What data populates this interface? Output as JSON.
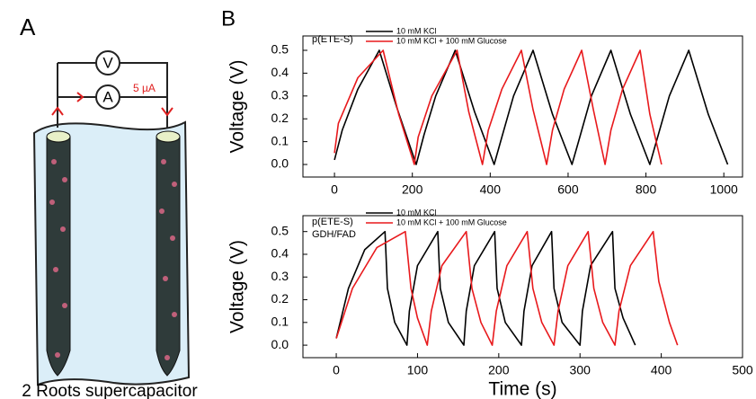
{
  "figure": {
    "panel_labels": [
      "A",
      "B"
    ],
    "caption": "2 Roots supercapacitor",
    "meter_labels": [
      "V",
      "A"
    ],
    "current": "5 µA"
  },
  "chart_data": [
    {
      "type": "line",
      "annotations": [
        "p(ETE-S)"
      ],
      "ylabel": "Voltage (V)",
      "xlim": [
        -81,
        1048
      ],
      "xticks": [
        0,
        200,
        400,
        600,
        800,
        1000
      ],
      "ylim": [
        -0.055,
        0.563
      ],
      "yticks": [
        {
          "value": 0,
          "label": "0.0"
        },
        0.1,
        0.2,
        0.3,
        0.4,
        0.5
      ],
      "series": [
        {
          "name": "10 mM KCl",
          "color": "#000000",
          "x": [
            0,
            20,
            60,
            115,
            160,
            210,
            230,
            260,
            310,
            360,
            410,
            430,
            460,
            510,
            560,
            610,
            630,
            660,
            710,
            760,
            810,
            830,
            860,
            910,
            960,
            1010
          ],
          "values": [
            0.02,
            0.15,
            0.33,
            0.5,
            0.25,
            0.0,
            0.13,
            0.3,
            0.5,
            0.23,
            0.0,
            0.12,
            0.3,
            0.5,
            0.22,
            0.0,
            0.12,
            0.3,
            0.5,
            0.22,
            0.0,
            0.12,
            0.3,
            0.5,
            0.22,
            0.0
          ]
        },
        {
          "name": "10 mM KCl + 100 mM Glucose",
          "color": "#e8191c",
          "x": [
            0,
            10,
            60,
            125,
            165,
            205,
            215,
            250,
            315,
            345,
            380,
            395,
            430,
            480,
            510,
            545,
            560,
            590,
            635,
            665,
            695,
            710,
            740,
            785,
            810,
            840
          ],
          "values": [
            0.05,
            0.18,
            0.38,
            0.5,
            0.22,
            0.0,
            0.12,
            0.3,
            0.5,
            0.23,
            0.0,
            0.15,
            0.33,
            0.5,
            0.24,
            0.0,
            0.15,
            0.33,
            0.5,
            0.24,
            0.0,
            0.15,
            0.33,
            0.5,
            0.22,
            0.0
          ]
        }
      ]
    },
    {
      "type": "line",
      "annotations": [
        "p(ETE-S)",
        "GDH/FAD"
      ],
      "ylabel": "Voltage (V)",
      "xlabel": "Time (s)",
      "xlim": [
        -41,
        500
      ],
      "xticks": [
        0,
        100,
        200,
        300,
        400,
        500
      ],
      "ylim": [
        -0.055,
        0.57
      ],
      "yticks": [
        {
          "value": 0,
          "label": "0.0"
        },
        0.1,
        0.2,
        0.3,
        0.4,
        0.5
      ],
      "series": [
        {
          "name": "10 mM KCl",
          "color": "#000000",
          "x": [
            0,
            15,
            35,
            60,
            63,
            72,
            87,
            90,
            100,
            125,
            128,
            138,
            157,
            160,
            170,
            195,
            198,
            208,
            228,
            231,
            241,
            265,
            268,
            278,
            300,
            303,
            313,
            340,
            343,
            353,
            368
          ],
          "values": [
            0.03,
            0.25,
            0.42,
            0.5,
            0.25,
            0.1,
            0.0,
            0.15,
            0.35,
            0.5,
            0.25,
            0.1,
            0.0,
            0.15,
            0.35,
            0.5,
            0.25,
            0.1,
            0.0,
            0.15,
            0.35,
            0.5,
            0.25,
            0.1,
            0.0,
            0.15,
            0.35,
            0.5,
            0.25,
            0.12,
            0.0
          ]
        },
        {
          "name": "10 mM KCl + 100 mM Glucose",
          "color": "#e8191c",
          "x": [
            0,
            20,
            50,
            85,
            92,
            100,
            112,
            117,
            130,
            160,
            167,
            178,
            192,
            197,
            210,
            235,
            242,
            253,
            268,
            273,
            285,
            310,
            317,
            328,
            343,
            348,
            362,
            390,
            397,
            410,
            420
          ],
          "values": [
            0.03,
            0.25,
            0.43,
            0.5,
            0.25,
            0.12,
            0.0,
            0.15,
            0.35,
            0.5,
            0.25,
            0.1,
            0.0,
            0.15,
            0.35,
            0.5,
            0.25,
            0.1,
            0.0,
            0.15,
            0.35,
            0.5,
            0.25,
            0.1,
            0.0,
            0.15,
            0.35,
            0.5,
            0.28,
            0.1,
            0.0
          ]
        }
      ]
    }
  ]
}
